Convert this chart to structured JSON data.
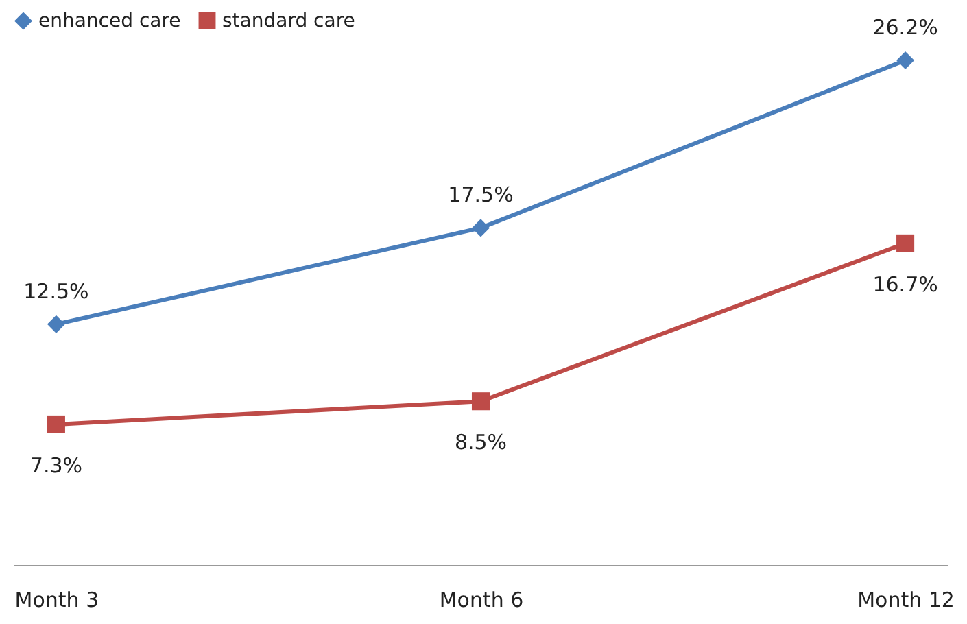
{
  "chart_data": {
    "type": "line",
    "categories": [
      "Month 3",
      "Month 6",
      "Month 12"
    ],
    "legend": "top",
    "grid": false,
    "series": [
      {
        "name": "enhanced care",
        "color": "#4a7ebb",
        "marker": "diamond",
        "values": [
          12.5,
          17.5,
          26.2
        ],
        "value_labels": [
          "12.5%",
          "17.5%",
          "26.2%"
        ]
      },
      {
        "name": "standard care",
        "color": "#be4b48",
        "marker": "square",
        "values": [
          7.3,
          8.5,
          16.7
        ],
        "value_labels": [
          "7.3%",
          "8.5%",
          "16.7%"
        ]
      }
    ]
  }
}
